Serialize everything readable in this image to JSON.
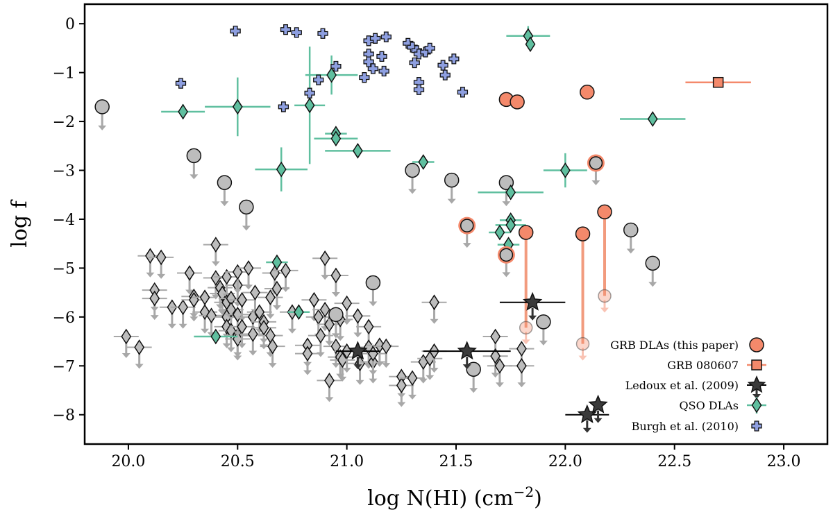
{
  "chart_data": {
    "type": "scatter",
    "xlabel": "log N(HI) (cm",
    "xlabel_sup": "−2",
    "xlabel_close": ")",
    "ylabel": "log f",
    "xlim": [
      19.8,
      23.2
    ],
    "ylim": [
      -8.6,
      0.4
    ],
    "x_ticks": [
      20.0,
      20.5,
      21.0,
      21.5,
      22.0,
      22.5,
      23.0
    ],
    "x_tick_labels": [
      "20.0",
      "20.5",
      "21.0",
      "21.5",
      "22.0",
      "22.5",
      "23.0"
    ],
    "y_ticks": [
      0,
      -1,
      -2,
      -3,
      -4,
      -5,
      -6,
      -7,
      -8
    ],
    "y_tick_labels": [
      "0",
      "−1",
      "−2",
      "−3",
      "−4",
      "−5",
      "−6",
      "−7",
      "−8"
    ],
    "legend_position": "bottom-right",
    "colors": {
      "grb": "#F4896B",
      "grb_line": "#F29B7E",
      "qso": "#5FBF9F",
      "burgh": "#8E9FE0",
      "ledoux": "#3A3A3A",
      "upper_grey": "#A8A8A8",
      "grey_marker": "#BDBDBD"
    },
    "series": [
      {
        "name": "GRB DLAs (this paper)",
        "marker": "circle",
        "detections": [
          [
            21.73,
            -1.55
          ],
          [
            21.78,
            -1.6
          ],
          [
            22.1,
            -1.4
          ],
          [
            21.82,
            -4.27
          ],
          [
            22.08,
            -4.3
          ],
          [
            22.18,
            -3.85
          ]
        ],
        "vertical_links": [
          [
            21.82,
            -4.27,
            -6.22
          ],
          [
            22.08,
            -4.3,
            -6.55
          ],
          [
            22.18,
            -3.85,
            -5.57
          ]
        ],
        "ringed_limits": [
          [
            21.55,
            -4.13
          ],
          [
            21.73,
            -4.73
          ],
          [
            22.14,
            -2.85
          ]
        ],
        "faded_limits": [
          [
            21.82,
            -6.22
          ],
          [
            22.08,
            -6.55
          ],
          [
            22.18,
            -5.57
          ]
        ],
        "grey_limits": [
          [
            19.88,
            -1.7
          ],
          [
            20.3,
            -2.7
          ],
          [
            20.44,
            -3.25
          ],
          [
            20.54,
            -3.75
          ],
          [
            21.12,
            -5.3
          ],
          [
            20.95,
            -5.95
          ],
          [
            21.3,
            -3.0
          ],
          [
            21.48,
            -3.2
          ],
          [
            21.73,
            -3.25
          ],
          [
            21.58,
            -7.07
          ],
          [
            21.9,
            -6.1
          ],
          [
            22.3,
            -4.22
          ],
          [
            22.4,
            -4.9
          ]
        ]
      },
      {
        "name": "GRB 080607",
        "marker": "square",
        "points": [
          [
            22.7,
            -1.2,
            0.15,
            0
          ]
        ]
      },
      {
        "name": "Ledoux et al. (2009)",
        "marker": "star",
        "points": [
          [
            21.05,
            -6.7,
            0.1
          ],
          [
            21.55,
            -6.7,
            0.2
          ],
          [
            21.85,
            -5.7,
            0.15
          ],
          [
            22.1,
            -8.0,
            0.1
          ],
          [
            22.15,
            -7.8,
            0.0
          ]
        ]
      },
      {
        "name": "QSO DLAs",
        "marker": "diamond",
        "points": [
          [
            21.83,
            -0.25,
            0.1,
            0.2
          ],
          [
            21.84,
            -0.42,
            0,
            0
          ],
          [
            20.93,
            -1.05,
            0.12,
            0.4
          ],
          [
            20.25,
            -1.8,
            0.1,
            0.15
          ],
          [
            20.5,
            -1.7,
            0.15,
            0.6
          ],
          [
            20.83,
            -1.67,
            0.07,
            1.2
          ],
          [
            20.7,
            -2.98,
            0.12,
            0.45
          ],
          [
            20.95,
            -2.25,
            0.05,
            0.05
          ],
          [
            20.95,
            -2.35,
            0.1,
            0.1
          ],
          [
            21.05,
            -2.6,
            0.15,
            0.1
          ],
          [
            21.35,
            -2.83,
            0.05,
            0.1
          ],
          [
            22.4,
            -1.95,
            0.15,
            0.05
          ],
          [
            22.0,
            -3.0,
            0.1,
            0.35
          ],
          [
            21.75,
            -3.45,
            0.15,
            0
          ],
          [
            21.75,
            -4.02,
            0.05,
            0.1
          ],
          [
            21.75,
            -4.12,
            0.07,
            0.05
          ],
          [
            21.7,
            -4.27,
            0.05,
            0.05
          ],
          [
            21.74,
            -4.52,
            0.05,
            0.05
          ],
          [
            20.68,
            -4.88,
            0.05,
            0
          ],
          [
            20.78,
            -5.9,
            0.05,
            0
          ],
          [
            20.4,
            -6.4,
            0.1,
            0
          ]
        ]
      },
      {
        "name": "Burgh et al. (2010)",
        "marker": "plus",
        "points": [
          [
            20.49,
            -0.15
          ],
          [
            20.72,
            -0.12
          ],
          [
            20.77,
            -0.18
          ],
          [
            20.89,
            -0.2
          ],
          [
            20.24,
            -1.22
          ],
          [
            20.71,
            -1.7
          ],
          [
            20.83,
            -1.42
          ],
          [
            20.87,
            -1.15
          ],
          [
            20.95,
            -0.87
          ],
          [
            21.08,
            -1.1
          ],
          [
            21.1,
            -0.35
          ],
          [
            21.13,
            -0.3
          ],
          [
            21.18,
            -0.27
          ],
          [
            21.1,
            -0.62
          ],
          [
            21.1,
            -0.78
          ],
          [
            21.16,
            -0.67
          ],
          [
            21.12,
            -0.92
          ],
          [
            21.17,
            -0.97
          ],
          [
            21.28,
            -0.4
          ],
          [
            21.3,
            -0.48
          ],
          [
            21.32,
            -0.55
          ],
          [
            21.33,
            -0.62
          ],
          [
            21.36,
            -0.58
          ],
          [
            21.38,
            -0.5
          ],
          [
            21.31,
            -0.8
          ],
          [
            21.33,
            -1.2
          ],
          [
            21.33,
            -1.35
          ],
          [
            21.44,
            -0.85
          ],
          [
            21.45,
            -1.05
          ],
          [
            21.49,
            -0.72
          ],
          [
            21.53,
            -1.4
          ]
        ]
      }
    ],
    "qso_limits": [
      [
        19.99,
        -6.4
      ],
      [
        20.05,
        -6.62
      ],
      [
        20.1,
        -4.75
      ],
      [
        20.12,
        -5.45
      ],
      [
        20.12,
        -5.62
      ],
      [
        20.15,
        -4.78
      ],
      [
        20.2,
        -5.8
      ],
      [
        20.25,
        -5.8
      ],
      [
        20.28,
        -5.1
      ],
      [
        20.3,
        -5.58
      ],
      [
        20.3,
        -5.65
      ],
      [
        20.35,
        -5.6
      ],
      [
        20.35,
        -5.9
      ],
      [
        20.38,
        -5.97
      ],
      [
        20.4,
        -4.52
      ],
      [
        20.4,
        -5.2
      ],
      [
        20.42,
        -5.4
      ],
      [
        20.43,
        -5.52
      ],
      [
        20.45,
        -5.18
      ],
      [
        20.45,
        -5.7
      ],
      [
        20.45,
        -6.0
      ],
      [
        20.45,
        -6.2
      ],
      [
        20.47,
        -5.62
      ],
      [
        20.47,
        -5.85
      ],
      [
        20.47,
        -6.28
      ],
      [
        20.5,
        -5.35
      ],
      [
        20.5,
        -5.08
      ],
      [
        20.5,
        -6.38
      ],
      [
        20.5,
        -6.45
      ],
      [
        20.5,
        -5.95
      ],
      [
        20.52,
        -5.65
      ],
      [
        20.52,
        -6.2
      ],
      [
        20.55,
        -5.0
      ],
      [
        20.57,
        -6.0
      ],
      [
        20.57,
        -6.35
      ],
      [
        20.58,
        -5.5
      ],
      [
        20.6,
        -5.9
      ],
      [
        20.62,
        -6.1
      ],
      [
        20.62,
        -6.22
      ],
      [
        20.65,
        -5.6
      ],
      [
        20.65,
        -6.38
      ],
      [
        20.66,
        -6.6
      ],
      [
        20.67,
        -5.1
      ],
      [
        20.68,
        -5.42
      ],
      [
        20.72,
        -5.05
      ],
      [
        20.75,
        -5.9
      ],
      [
        20.82,
        -6.58
      ],
      [
        20.82,
        -6.75
      ],
      [
        20.85,
        -5.65
      ],
      [
        20.87,
        -6.0
      ],
      [
        20.88,
        -6.38
      ],
      [
        20.9,
        -4.8
      ],
      [
        20.9,
        -5.85
      ],
      [
        20.92,
        -6.15
      ],
      [
        20.95,
        -5.15
      ],
      [
        20.95,
        -6.6
      ],
      [
        20.97,
        -6.05
      ],
      [
        20.97,
        -6.82
      ],
      [
        20.98,
        -6.88
      ],
      [
        20.92,
        -7.3
      ],
      [
        21.0,
        -6.7
      ],
      [
        21.0,
        -5.72
      ],
      [
        21.05,
        -5.98
      ],
      [
        21.06,
        -6.95
      ],
      [
        21.1,
        -6.2
      ],
      [
        21.1,
        -6.62
      ],
      [
        21.12,
        -6.92
      ],
      [
        21.12,
        -6.75
      ],
      [
        21.15,
        -6.58
      ],
      [
        21.18,
        -6.6
      ],
      [
        21.25,
        -7.22
      ],
      [
        21.25,
        -7.4
      ],
      [
        21.3,
        -7.25
      ],
      [
        21.35,
        -6.92
      ],
      [
        21.38,
        -6.85
      ],
      [
        21.4,
        -5.7
      ],
      [
        21.4,
        -6.7
      ],
      [
        21.68,
        -6.4
      ],
      [
        21.68,
        -6.8
      ],
      [
        21.7,
        -7.0
      ],
      [
        21.8,
        -6.65
      ],
      [
        21.8,
        -7.0
      ]
    ],
    "legend_entries": [
      "GRB DLAs (this paper)",
      "GRB 080607",
      "Ledoux et al. (2009)",
      "QSO DLAs",
      "Burgh et al. (2010)"
    ]
  }
}
